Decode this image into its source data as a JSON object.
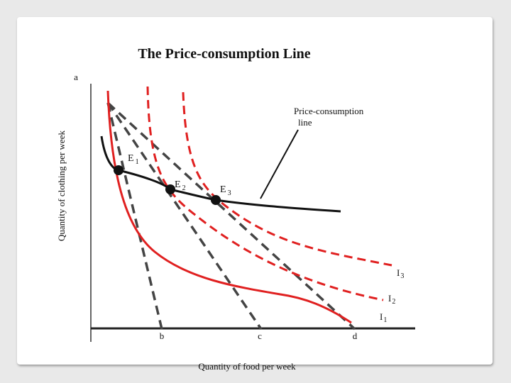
{
  "slide": {
    "title": "The Price-consumption Line",
    "panel_label": "a",
    "y_axis_label": "Quantity of clothing per week",
    "x_axis_label": "Quantity of food per week",
    "pcl_label_line1": "Price-consumption",
    "pcl_label_line2": "line",
    "equilibria": [
      {
        "letter": "E",
        "sub": "1"
      },
      {
        "letter": "E",
        "sub": "2"
      },
      {
        "letter": "E",
        "sub": "3"
      }
    ],
    "indifference_curves": [
      {
        "letter": "I",
        "sub": "1"
      },
      {
        "letter": "I",
        "sub": "2"
      },
      {
        "letter": "I",
        "sub": "3"
      }
    ],
    "budget_intercepts": [
      "b",
      "c",
      "d"
    ],
    "colors": {
      "indifference": "#e02020",
      "budget": "#444444",
      "pcl": "#111111",
      "background": "#e9e9e9"
    }
  }
}
